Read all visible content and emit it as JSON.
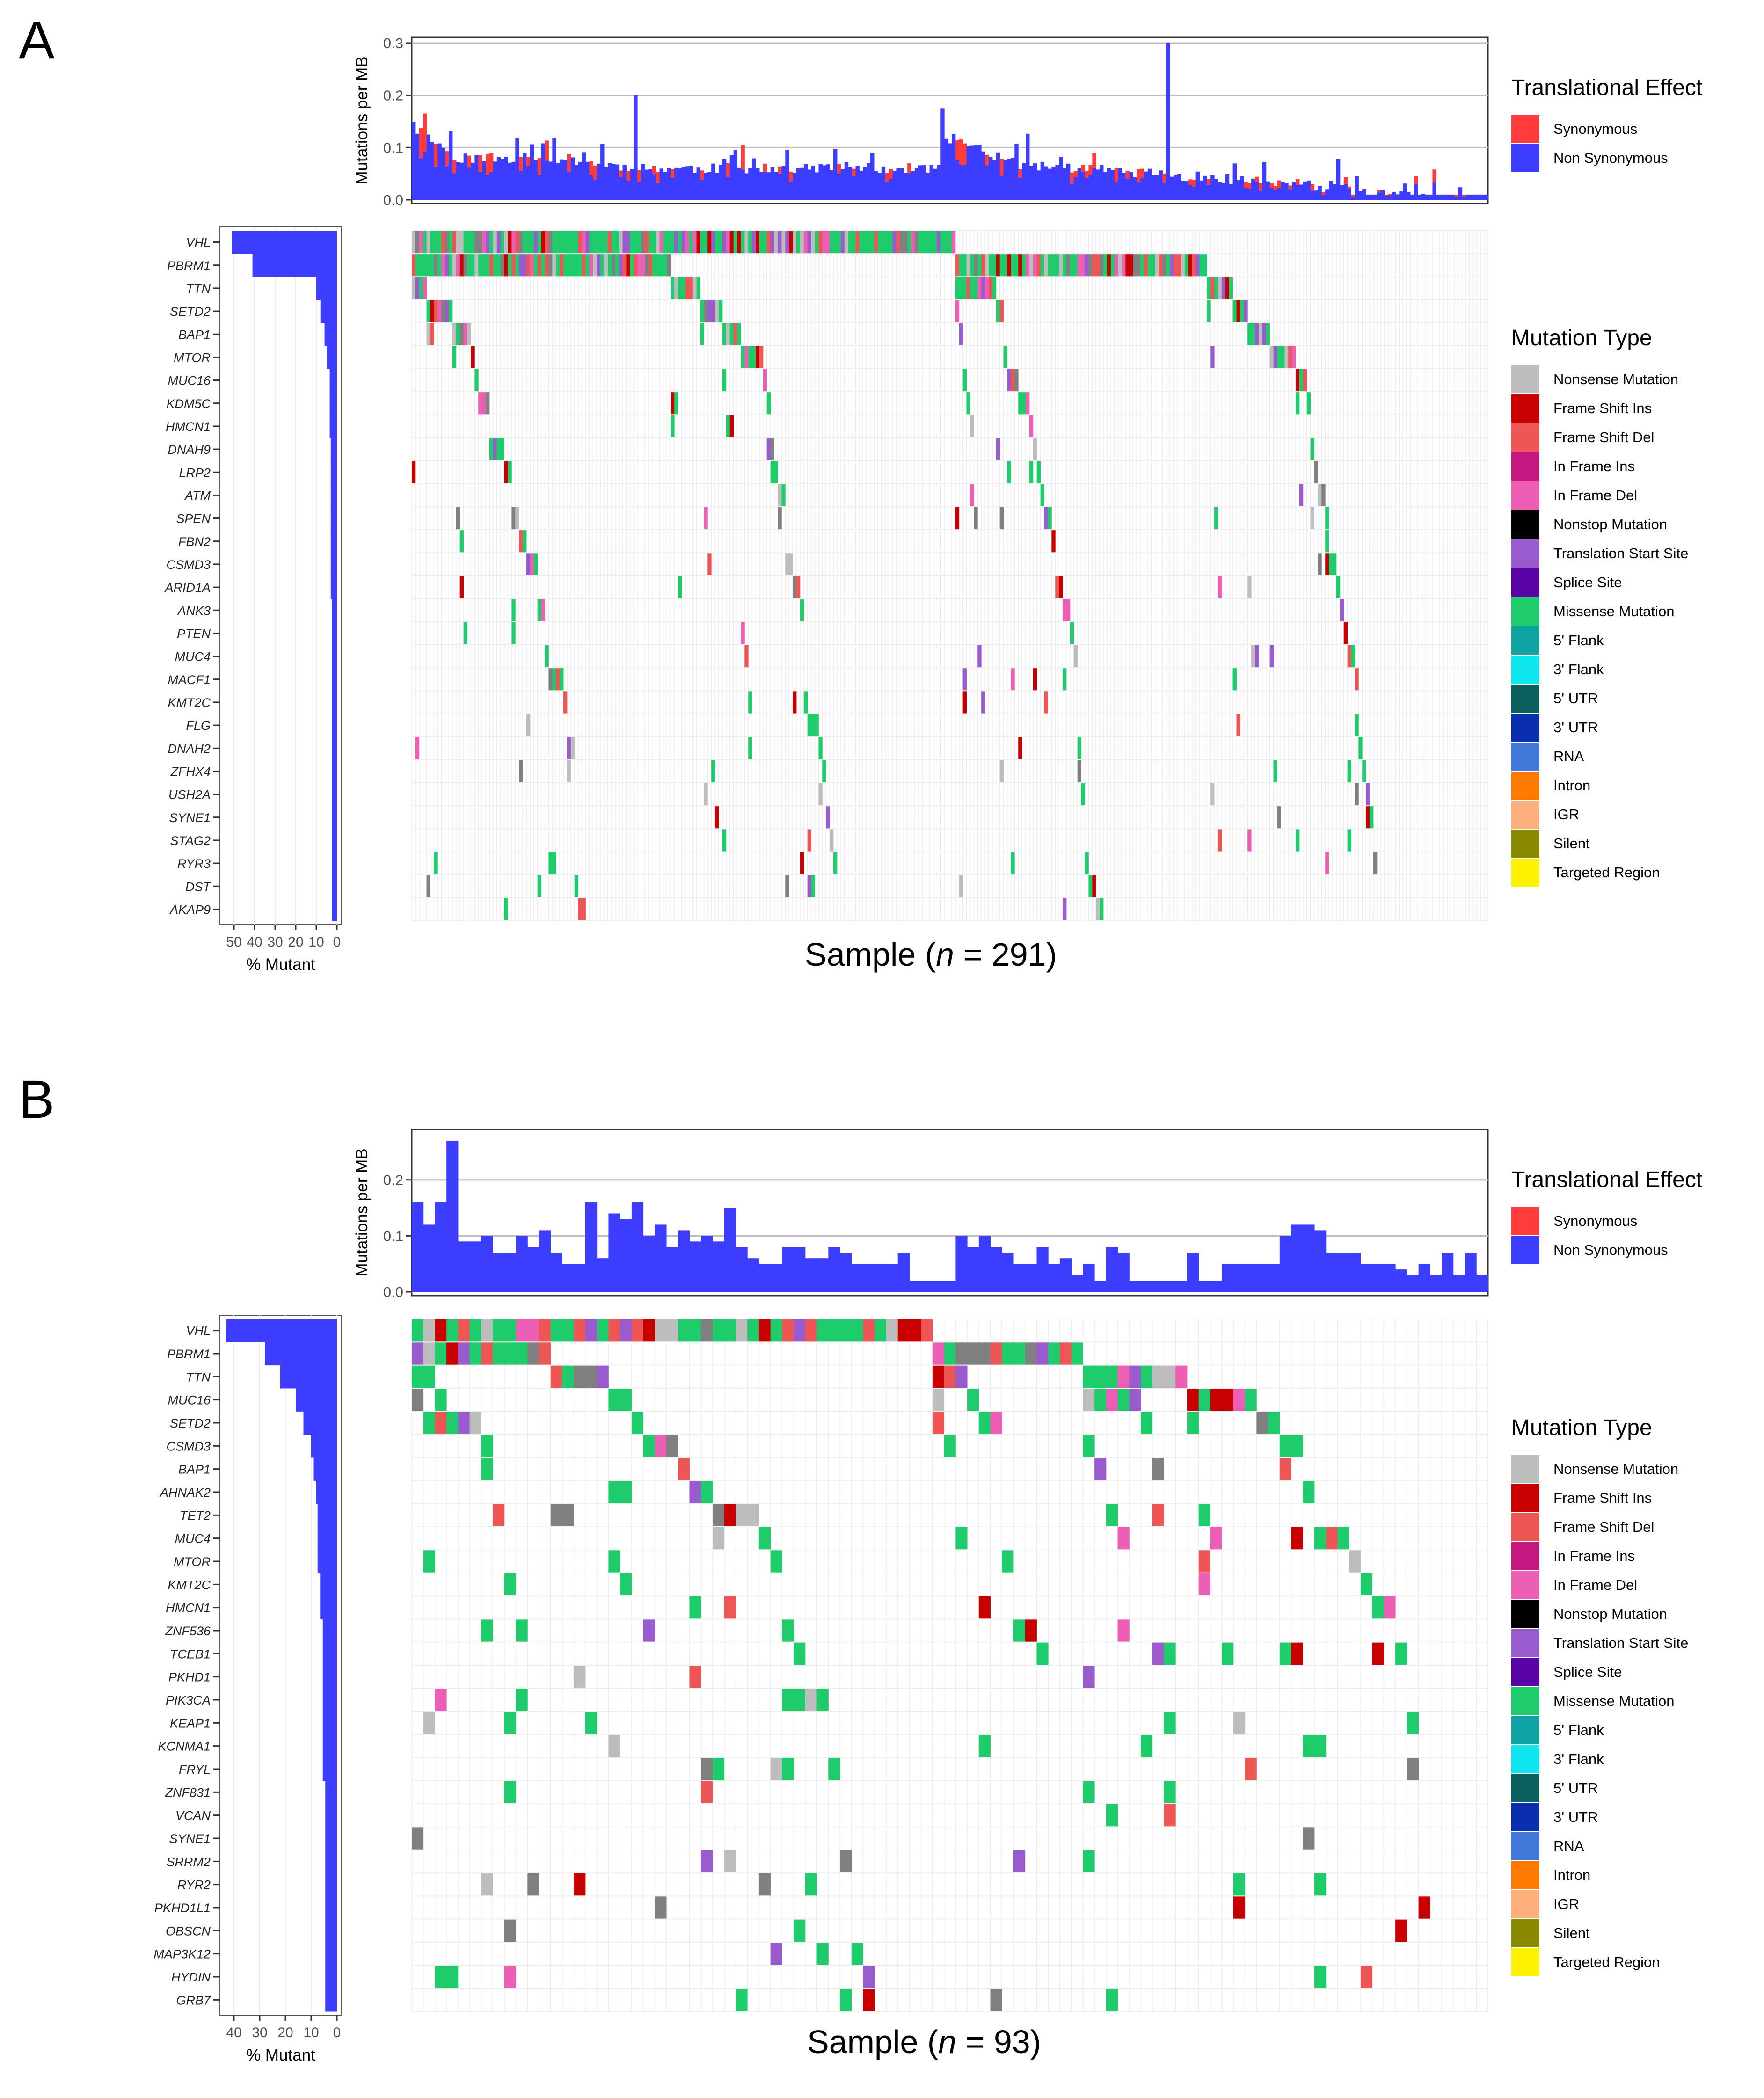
{
  "colors": {
    "Nonsense Mutation": "#BDBDBD",
    "Frame Shift Ins": "#C80000",
    "Frame Shift Del": "#EE5555",
    "In Frame Ins": "#C41780",
    "In Frame Del": "#EC5FB4",
    "Nonstop Mutation": "#000000",
    "Translation Start Site": "#9A5BCF",
    "Splice Site": "#5A03A6",
    "Missense Mutation": "#1ECC6B",
    "5' Flank": "#0FA3A3",
    "3' Flank": "#0FE6F0",
    "5' UTR": "#0B5F5F",
    "3' UTR": "#0A2FAE",
    "RNA": "#3F78D8",
    "Intron": "#FF7A00",
    "IGR": "#FDB07C",
    "Silent": "#8A8A00",
    "Targeted Region": "#FFF200",
    "Synonymous": "#FF3B3B",
    "Non Synonymous": "#3D3DFF",
    "Multi_Hit": "#808080"
  },
  "panels": [
    {
      "label": "A",
      "x_title_prefix": "Sample (",
      "x_title_italic": "n",
      "x_title_suffix": " = 291)",
      "chart_data": {
        "type": "oncoplot",
        "n_samples": 291,
        "tmb_ylabel": "Mutations per MB",
        "tmb_ylim": [
          0,
          0.3
        ],
        "tmb_ticks": [
          0.0,
          0.1,
          0.2,
          0.3
        ],
        "tmb_tick_labels": [
          "0.0",
          "0.1",
          "0.2",
          "0.3"
        ],
        "genes": [
          "VHL",
          "PBRM1",
          "TTN",
          "SETD2",
          "BAP1",
          "MTOR",
          "MUC16",
          "KDM5C",
          "HMCN1",
          "DNAH9",
          "LRP2",
          "ATM",
          "SPEN",
          "FBN2",
          "CSMD3",
          "ARID1A",
          "ANK3",
          "PTEN",
          "MUC4",
          "MACF1",
          "KMT2C",
          "FLG",
          "DNAH2",
          "ZFHX4",
          "USH2A",
          "SYNE1",
          "STAG2",
          "RYR3",
          "DST",
          "AKAP9"
        ],
        "pct_mutant": [
          51,
          41,
          10,
          8,
          6,
          5,
          3.5,
          3.5,
          3.5,
          3,
          3,
          3,
          3,
          3,
          3,
          3,
          2.5,
          2.5,
          2.5,
          2.5,
          2.5,
          2.5,
          2.5,
          2.5,
          2.5,
          2.5,
          2.5,
          2.5,
          2.5,
          2.5
        ],
        "pct_xlabel": "% Mutant",
        "pct_ticks": [
          50,
          40,
          30,
          20,
          10,
          0
        ],
        "pct_tick_labels": [
          "50",
          "40",
          "30",
          "20",
          "10",
          "0"
        ],
        "tmb_profile": [
          [
            0,
            0.13
          ],
          [
            6,
            0.1
          ],
          [
            12,
            0.07
          ],
          [
            40,
            0.07
          ],
          [
            60,
            0.05
          ],
          [
            100,
            0.05
          ],
          [
            142,
            0.05
          ],
          [
            143,
            0.11
          ],
          [
            150,
            0.1
          ],
          [
            160,
            0.06
          ],
          [
            200,
            0.04
          ],
          [
            240,
            0.02
          ],
          [
            260,
            0.0
          ]
        ],
        "tmb_peaks": [
          [
            60,
            0.2
          ],
          [
            204,
            0.3
          ]
        ]
      },
      "legend_effect": {
        "title": "Translational Effect",
        "items": [
          "Synonymous",
          "Non Synonymous"
        ]
      },
      "legend_type": {
        "title": "Mutation Type",
        "items": [
          "Nonsense Mutation",
          "Frame Shift Ins",
          "Frame Shift Del",
          "In Frame Ins",
          "In Frame Del",
          "Nonstop Mutation",
          "Translation Start Site",
          "Splice Site",
          "Missense Mutation",
          "5' Flank",
          "3' Flank",
          "5' UTR",
          "3' UTR",
          "RNA",
          "Intron",
          "IGR",
          "Silent",
          "Targeted Region"
        ]
      }
    },
    {
      "label": "B",
      "x_title_prefix": "Sample (",
      "x_title_italic": "n",
      "x_title_suffix": " = 93)",
      "chart_data": {
        "type": "oncoplot",
        "n_samples": 93,
        "tmb_ylabel": "Mutations per MB",
        "tmb_ylim": [
          0,
          0.28
        ],
        "tmb_ticks": [
          0.0,
          0.1,
          0.2
        ],
        "tmb_tick_labels": [
          "0.0",
          "0.1",
          "0.2"
        ],
        "genes": [
          "VHL",
          "PBRM1",
          "TTN",
          "MUC16",
          "SETD2",
          "CSMD3",
          "BAP1",
          "AHNAK2",
          "TET2",
          "MUC4",
          "MTOR",
          "KMT2C",
          "HMCN1",
          "ZNF536",
          "TCEB1",
          "PKHD1",
          "PIK3CA",
          "KEAP1",
          "KCNMA1",
          "FRYL",
          "ZNF831",
          "VCAN",
          "SYNE1",
          "SRRM2",
          "RYR2",
          "PKHD1L1",
          "OBSCN",
          "MAP3K12",
          "HYDIN",
          "GRB7"
        ],
        "pct_mutant": [
          43,
          28,
          22,
          16,
          13,
          10,
          9,
          8,
          7.5,
          7.5,
          7.5,
          6.5,
          6.5,
          5.5,
          5.5,
          5.5,
          5.5,
          5.5,
          5.5,
          5.5,
          4.5,
          4.5,
          4.5,
          4.5,
          4.5,
          4.5,
          4.5,
          4.5,
          4.5,
          4.5
        ],
        "pct_xlabel": "% Mutant",
        "pct_ticks": [
          40,
          30,
          20,
          10,
          0
        ],
        "pct_tick_labels": [
          "40",
          "30",
          "20",
          "10",
          "0"
        ],
        "tmb_values": [
          0.16,
          0.12,
          0.16,
          0.27,
          0.09,
          0.09,
          0.1,
          0.07,
          0.07,
          0.1,
          0.08,
          0.11,
          0.07,
          0.05,
          0.05,
          0.16,
          0.06,
          0.14,
          0.13,
          0.16,
          0.1,
          0.12,
          0.08,
          0.11,
          0.09,
          0.1,
          0.09,
          0.15,
          0.08,
          0.06,
          0.05,
          0.05,
          0.08,
          0.08,
          0.06,
          0.06,
          0.08,
          0.07,
          0.05,
          0.05,
          0.05,
          0.05,
          0.07,
          0.02,
          0.02,
          0.02,
          0.02,
          0.1,
          0.08,
          0.1,
          0.08,
          0.07,
          0.05,
          0.05,
          0.08,
          0.05,
          0.06,
          0.03,
          0.05,
          0.02,
          0.08,
          0.07,
          0.02,
          0.02,
          0.02,
          0.02,
          0.02,
          0.07,
          0.02,
          0.02,
          0.05,
          0.05,
          0.05,
          0.05,
          0.05,
          0.1,
          0.12,
          0.12,
          0.11,
          0.07,
          0.07,
          0.07,
          0.05,
          0.05,
          0.05,
          0.04,
          0.03,
          0.05,
          0.03,
          0.07,
          0.03,
          0.07,
          0.03
        ]
      },
      "legend_effect": {
        "title": "Translational Effect",
        "items": [
          "Synonymous",
          "Non Synonymous"
        ]
      },
      "legend_type": {
        "title": "Mutation Type",
        "items": [
          "Nonsense Mutation",
          "Frame Shift Ins",
          "Frame Shift Del",
          "In Frame Ins",
          "In Frame Del",
          "Nonstop Mutation",
          "Translation Start Site",
          "Splice Site",
          "Missense Mutation",
          "5' Flank",
          "3' Flank",
          "5' UTR",
          "3' UTR",
          "RNA",
          "Intron",
          "IGR",
          "Silent",
          "Targeted Region"
        ]
      }
    }
  ]
}
